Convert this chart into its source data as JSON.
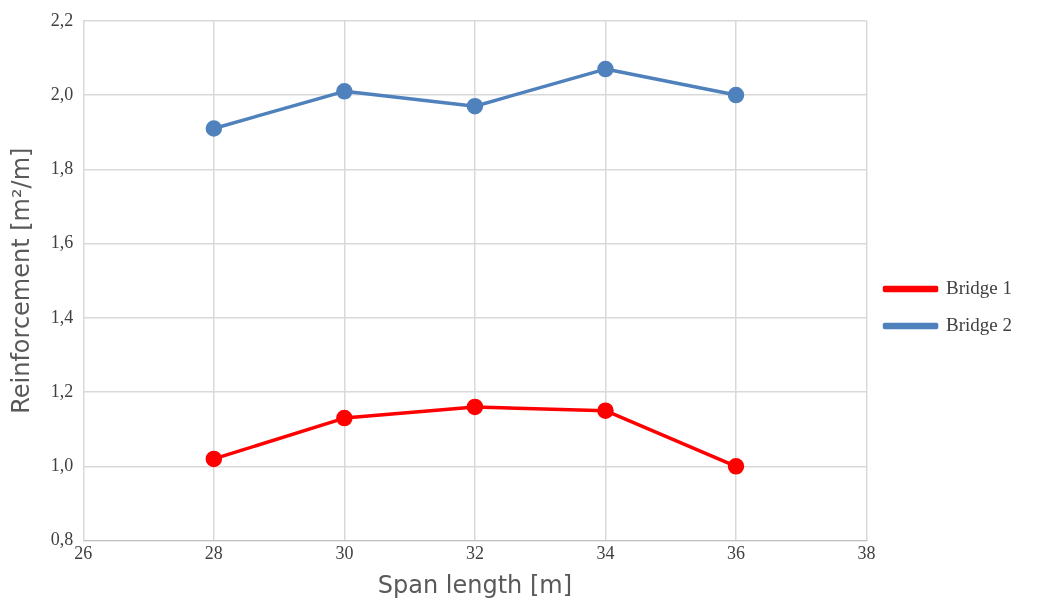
{
  "chart_data": {
    "type": "line",
    "xlabel": "Span length [m]",
    "ylabel": "Reinforcement [m²/m]",
    "x": [
      28,
      30,
      32,
      34,
      36
    ],
    "series": [
      {
        "name": "Bridge 1",
        "color": "#ff0000",
        "values": [
          1.02,
          1.13,
          1.16,
          1.15,
          1.0
        ]
      },
      {
        "name": "Bridge 2",
        "color": "#4f81bd",
        "values": [
          1.91,
          2.01,
          1.97,
          2.07,
          2.0
        ]
      }
    ],
    "xlim": [
      26,
      38
    ],
    "xticks": [
      26,
      28,
      30,
      32,
      34,
      36,
      38
    ],
    "ylim": [
      0.8,
      2.2
    ],
    "yticks": [
      {
        "value": 0.8,
        "label": "0,8"
      },
      {
        "value": 1.0,
        "label": "1,0"
      },
      {
        "value": 1.2,
        "label": "1,2"
      },
      {
        "value": 1.4,
        "label": "1,4"
      },
      {
        "value": 1.6,
        "label": "1,6"
      },
      {
        "value": 1.8,
        "label": "1,8"
      },
      {
        "value": 2.0,
        "label": "2,0"
      },
      {
        "value": 2.2,
        "label": "2,2"
      }
    ],
    "grid": true,
    "legend": "right",
    "marker": "circle",
    "line_style": "solid"
  }
}
